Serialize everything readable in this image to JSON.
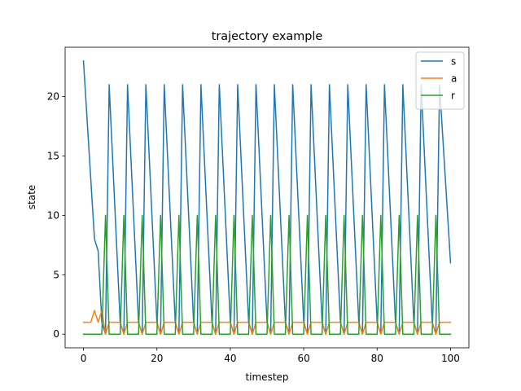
{
  "chart_data": {
    "type": "line",
    "title": "trajectory example",
    "xlabel": "timestep",
    "ylabel": "state",
    "xlim": [
      -5,
      105
    ],
    "ylim": [
      -1.15,
      24.15
    ],
    "xticks": [
      0,
      20,
      40,
      60,
      80,
      100
    ],
    "yticks": [
      0,
      5,
      10,
      15,
      20
    ],
    "grid": false,
    "legend_position": "top-right",
    "series": [
      {
        "name": "s",
        "color": "#1f77b4",
        "x": [
          0,
          3,
          4,
          5,
          6,
          7,
          10,
          11,
          12,
          15,
          16,
          17,
          20,
          21,
          22,
          25,
          26,
          27,
          30,
          31,
          32,
          35,
          36,
          37,
          40,
          41,
          42,
          45,
          46,
          47,
          50,
          51,
          52,
          55,
          56,
          57,
          60,
          61,
          62,
          65,
          66,
          67,
          70,
          71,
          72,
          75,
          76,
          77,
          80,
          81,
          82,
          85,
          86,
          87,
          90,
          91,
          92,
          95,
          96,
          97,
          100
        ],
        "values": [
          23,
          8,
          7,
          1,
          0,
          21,
          1,
          0,
          21,
          1,
          0,
          21,
          1,
          0,
          21,
          1,
          0,
          21,
          1,
          0,
          21,
          1,
          0,
          21,
          1,
          0,
          21,
          1,
          0,
          21,
          1,
          0,
          21,
          1,
          0,
          21,
          1,
          0,
          21,
          1,
          0,
          21,
          1,
          0,
          21,
          1,
          0,
          21,
          1,
          0,
          21,
          1,
          0,
          21,
          1,
          0,
          21,
          1,
          0,
          21,
          6
        ]
      },
      {
        "name": "a",
        "color": "#ff7f0e",
        "x": [
          0,
          2,
          3,
          4,
          5,
          6,
          7,
          10,
          11,
          12,
          15,
          16,
          17,
          20,
          21,
          22,
          25,
          26,
          27,
          30,
          31,
          32,
          35,
          36,
          37,
          40,
          41,
          42,
          45,
          46,
          47,
          50,
          51,
          52,
          55,
          56,
          57,
          60,
          61,
          62,
          65,
          66,
          67,
          70,
          71,
          72,
          75,
          76,
          77,
          80,
          81,
          82,
          85,
          86,
          87,
          90,
          91,
          92,
          95,
          96,
          97,
          100
        ],
        "values": [
          1,
          1,
          2,
          1,
          2,
          0,
          1,
          1,
          0,
          1,
          1,
          0,
          1,
          1,
          0,
          1,
          1,
          0,
          1,
          1,
          0,
          1,
          1,
          0,
          1,
          1,
          0,
          1,
          1,
          0,
          1,
          1,
          0,
          1,
          1,
          0,
          1,
          1,
          0,
          1,
          1,
          0,
          1,
          1,
          0,
          1,
          1,
          0,
          1,
          1,
          0,
          1,
          1,
          0,
          1,
          1,
          0,
          1,
          1,
          0,
          1,
          1
        ]
      },
      {
        "name": "r",
        "color": "#2ca02c",
        "x": [
          0,
          5,
          6,
          7,
          10,
          11,
          12,
          15,
          16,
          17,
          20,
          21,
          22,
          25,
          26,
          27,
          30,
          31,
          32,
          35,
          36,
          37,
          40,
          41,
          42,
          45,
          46,
          47,
          50,
          51,
          52,
          55,
          56,
          57,
          60,
          61,
          62,
          65,
          66,
          67,
          70,
          71,
          72,
          75,
          76,
          77,
          80,
          81,
          82,
          85,
          86,
          87,
          90,
          91,
          92,
          95,
          96,
          97,
          100
        ],
        "values": [
          0,
          0,
          10,
          0,
          0,
          10,
          0,
          0,
          10,
          0,
          0,
          10,
          0,
          0,
          10,
          0,
          0,
          10,
          0,
          0,
          10,
          0,
          0,
          10,
          0,
          0,
          10,
          0,
          0,
          10,
          0,
          0,
          10,
          0,
          0,
          10,
          0,
          0,
          10,
          0,
          0,
          10,
          0,
          0,
          10,
          0,
          0,
          10,
          0,
          0,
          10,
          0,
          0,
          10,
          0,
          0,
          10,
          0,
          0
        ]
      }
    ]
  }
}
